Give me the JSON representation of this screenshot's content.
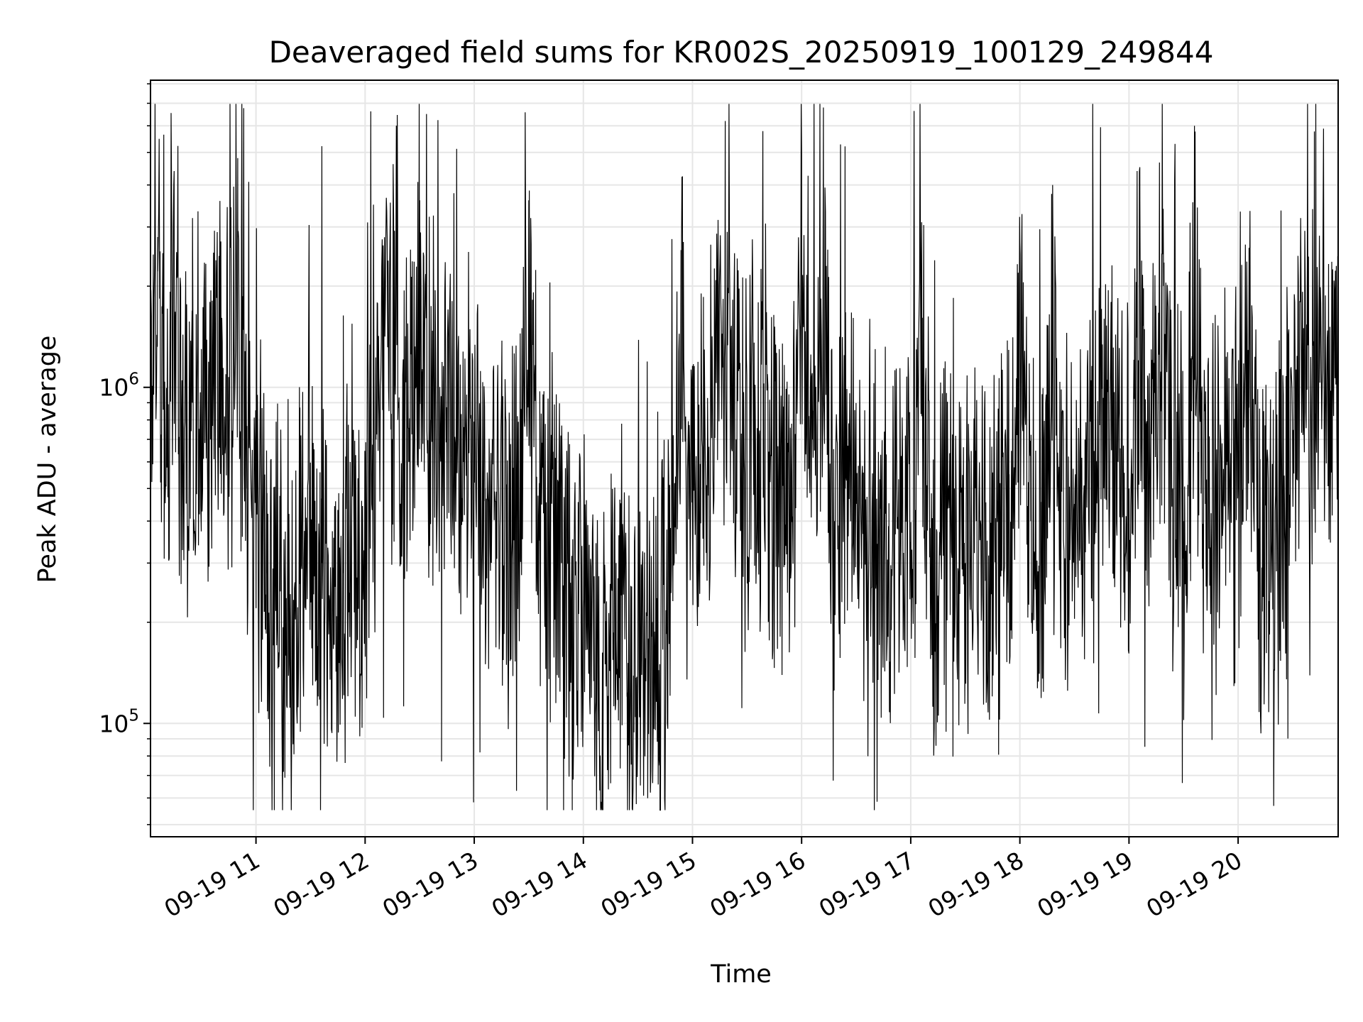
{
  "chart_data": {
    "type": "line",
    "title": "Deaveraged field sums for KR002S_20250919_100129_249844",
    "xlabel": "Time",
    "ylabel": "Peak ADU - average",
    "yscale": "log",
    "ylim": [
      46000,
      8200000
    ],
    "xlim": [
      "09-19 10:02",
      "09-19 20:55"
    ],
    "grid": true,
    "line_color": "#000000",
    "grid_color": "#e6e6e6",
    "x_ticks": [
      "09-19 11",
      "09-19 12",
      "09-19 13",
      "09-19 14",
      "09-19 15",
      "09-19 16",
      "09-19 17",
      "09-19 18",
      "09-19 19",
      "09-19 20"
    ],
    "y_ticks": [
      {
        "value": 100000,
        "base": "10",
        "exp": "5"
      },
      {
        "value": 1000000,
        "base": "10",
        "exp": "6"
      }
    ],
    "series": [
      {
        "x": [
          "09-19 10:02",
          "09-19 10:06",
          "09-19 10:10",
          "09-19 10:15",
          "09-19 10:20",
          "09-19 10:25",
          "09-19 10:30",
          "09-19 10:35",
          "09-19 10:40",
          "09-19 10:45",
          "09-19 10:50",
          "09-19 10:55",
          "09-19 11:00",
          "09-19 11:06",
          "09-19 11:12",
          "09-19 11:18",
          "09-19 11:24",
          "09-19 11:30",
          "09-19 11:36",
          "09-19 11:42",
          "09-19 11:48",
          "09-19 11:54",
          "09-19 12:00",
          "09-19 12:06",
          "09-19 12:12",
          "09-19 12:18",
          "09-19 12:24",
          "09-19 12:30",
          "09-19 12:36",
          "09-19 12:42",
          "09-19 12:48",
          "09-19 12:54",
          "09-19 13:00",
          "09-19 13:06",
          "09-19 13:12",
          "09-19 13:18",
          "09-19 13:24",
          "09-19 13:30",
          "09-19 13:36",
          "09-19 13:42",
          "09-19 13:48",
          "09-19 13:54",
          "09-19 14:00",
          "09-19 14:06",
          "09-19 14:12",
          "09-19 14:18",
          "09-19 14:24",
          "09-19 14:30",
          "09-19 14:36",
          "09-19 14:42",
          "09-19 14:48",
          "09-19 14:54",
          "09-19 15:00",
          "09-19 15:06",
          "09-19 15:12",
          "09-19 15:18",
          "09-19 15:24",
          "09-19 15:30",
          "09-19 15:36",
          "09-19 15:42",
          "09-19 15:48",
          "09-19 15:54",
          "09-19 16:00",
          "09-19 16:06",
          "09-19 16:12",
          "09-19 16:18",
          "09-19 16:24",
          "09-19 16:30",
          "09-19 16:36",
          "09-19 16:42",
          "09-19 16:48",
          "09-19 16:54",
          "09-19 17:00",
          "09-19 17:06",
          "09-19 17:12",
          "09-19 17:18",
          "09-19 17:24",
          "09-19 17:30",
          "09-19 17:36",
          "09-19 17:42",
          "09-19 17:48",
          "09-19 17:54",
          "09-19 18:00",
          "09-19 18:06",
          "09-19 18:12",
          "09-19 18:18",
          "09-19 18:24",
          "09-19 18:30",
          "09-19 18:36",
          "09-19 18:42",
          "09-19 18:48",
          "09-19 18:54",
          "09-19 19:00",
          "09-19 19:06",
          "09-19 19:12",
          "09-19 19:18",
          "09-19 19:24",
          "09-19 19:30",
          "09-19 19:36",
          "09-19 19:42",
          "09-19 19:48",
          "09-19 19:54",
          "09-19 20:00",
          "09-19 20:06",
          "09-19 20:12",
          "09-19 20:18",
          "09-19 20:24",
          "09-19 20:30",
          "09-19 20:36",
          "09-19 20:42",
          "09-19 20:48",
          "09-19 20:55"
        ],
        "values": [
          1000000,
          2800000,
          700000,
          4400000,
          600000,
          900000,
          1300000,
          700000,
          2200000,
          800000,
          2800000,
          500000,
          400000,
          280000,
          320000,
          150000,
          260000,
          350000,
          300000,
          250000,
          280000,
          320000,
          350000,
          700000,
          3000000,
          800000,
          600000,
          3600000,
          800000,
          900000,
          1000000,
          600000,
          700000,
          500000,
          400000,
          350000,
          400000,
          3600000,
          350000,
          350000,
          300000,
          250000,
          220000,
          180000,
          150000,
          300000,
          120000,
          200000,
          130000,
          150000,
          300000,
          2800000,
          450000,
          500000,
          800000,
          6200000,
          700000,
          600000,
          600000,
          500000,
          600000,
          500000,
          5000000,
          700000,
          6800000,
          400000,
          500000,
          450000,
          400000,
          350000,
          300000,
          350000,
          300000,
          3100000,
          250000,
          400000,
          500000,
          300000,
          400000,
          350000,
          450000,
          400000,
          2700000,
          400000,
          300000,
          4000000,
          350000,
          450000,
          500000,
          600000,
          700000,
          600000,
          500000,
          3600000,
          500000,
          2500000,
          500000,
          400000,
          6000000,
          450000,
          500000,
          600000,
          500000,
          2600000,
          300000,
          400000,
          500000,
          600000,
          1500000,
          800000,
          1400000,
          1000000
        ]
      }
    ]
  }
}
